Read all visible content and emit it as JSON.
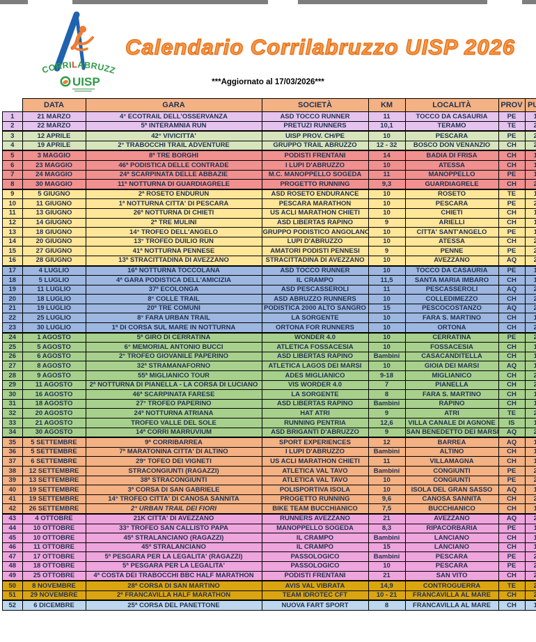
{
  "page": {
    "title": "Calendario Corrilabruzzo UISP 2026",
    "updated_note": "***Aggiornato al 17/03/2026***"
  },
  "colors": {
    "title_orange": "#ED7D31",
    "header_bg": "#F4B183",
    "table_ink": "#1F3050",
    "logo_blue": "#1F63B0",
    "logo_green": "#2E9B47",
    "logo_orange": "#ED7D31"
  },
  "logo": {
    "word1": "CORRI",
    "word2": "L",
    "word3": "ABRUZZO",
    "org": "UISP"
  },
  "table": {
    "headers": [
      "DATA",
      "GARA",
      "SOCIETÀ",
      "KM",
      "LOCALITÀ",
      "PROV",
      "PUNTI"
    ],
    "month_colors": {
      "marzo": "#E5C3EE",
      "aprile": "#D7E4BC",
      "maggio": "#F0908F",
      "giugno": "#FFE699",
      "luglio": "#9DB7E0",
      "agosto": "#A8D08D",
      "settembre": "#F4B183",
      "ottobre": "#EEA5DD",
      "novembre": "#DBA512",
      "dicembre": "#BDD7EE"
    },
    "rows": [
      {
        "n": "1",
        "date": "21 MARZO",
        "race": "4° ECOTRAIL DELL'OSSERVANZA",
        "club": "ASD TOCCO RUNNER",
        "km": "11",
        "loc": "TOCCO DA CASAURIA",
        "prov": "PE",
        "pts": "100",
        "m": "marzo"
      },
      {
        "n": "2",
        "date": "22 MARZO",
        "race": "5ª INTERAMNIA RUN",
        "club": "PRETUZI RUNNERS",
        "km": "10,1",
        "loc": "TERAMO",
        "prov": "TE",
        "pts": "200",
        "m": "marzo",
        "gend": true
      },
      {
        "n": "3",
        "date": "12 APRILE",
        "race": "42° VIVICITTA'",
        "club": "UISP PROV. CH/PE",
        "km": "10",
        "loc": "PESCARA",
        "prov": "PE",
        "pts": "250",
        "m": "aprile"
      },
      {
        "n": "4",
        "date": "19 APRILE",
        "race": "2° TRABOCCHI TRAIL ADVENTURE",
        "club": "GRUPPO TRAIL ABRUZZO",
        "km": "12 - 32",
        "loc": "BOSCO DON VENANZIO",
        "prov": "CH",
        "pts": "200",
        "m": "aprile",
        "gend": true
      },
      {
        "n": "5",
        "date": "3 MAGGIO",
        "race": "8ª TRE BORGHI",
        "club": "PODISTI FRENTANI",
        "km": "14",
        "loc": "BADIA DI FRISA",
        "prov": "CH",
        "pts": "150",
        "m": "maggio"
      },
      {
        "n": "6",
        "date": "23 MAGGIO",
        "race": "46ª PODISTICA DELLE CONTRADE",
        "club": "I LUPI D'ABRUZZO",
        "km": "10",
        "loc": "ATESSA",
        "prov": "CH",
        "pts": "150",
        "m": "maggio"
      },
      {
        "n": "7",
        "date": "24 MAGGIO",
        "race": "24ª SCARPINATA DELLE ABBAZIE",
        "club": "M.C. MANOPPELLO SOGEDA",
        "km": "11",
        "loc": "MANOPPELLO",
        "prov": "PE",
        "pts": "150",
        "m": "maggio"
      },
      {
        "n": "8",
        "date": "30 MAGGIO",
        "race": "11ª NOTTURNA DI GUARDIAGRELE",
        "club": "PROGETTO RUNNING",
        "km": "9,3",
        "loc": "GUARDIAGRELE",
        "prov": "CH",
        "pts": "200",
        "m": "maggio",
        "gend": true
      },
      {
        "n": "9",
        "date": "5 GIUGNO",
        "race": "2ª ROSETO ENDURUN",
        "club": "ASD ROSETO ENDURANCE",
        "km": "10",
        "loc": "ROSETO",
        "prov": "TE",
        "pts": "150",
        "m": "giugno"
      },
      {
        "n": "10",
        "date": "11 GIUGNO",
        "race": "1ª NOTTURNA CITTA' DI PESCARA",
        "club": "PESCARA MARATHON",
        "km": "10",
        "loc": "PESCARA",
        "prov": "PE",
        "pts": "250",
        "m": "giugno"
      },
      {
        "n": "11",
        "date": "13 GIUGNO",
        "race": "26ª NOTTURNA DI CHIETI",
        "club": "US ACLI MARATHON CHIETI",
        "km": "10",
        "loc": "CHIETI",
        "prov": "CH",
        "pts": "100",
        "m": "giugno"
      },
      {
        "n": "12",
        "date": "14 GIUGNO",
        "race": "2ª TRE MULINI",
        "club": "ASD LIBERTAS RAPINO",
        "km": "9",
        "loc": "ARIELLI",
        "prov": "CH",
        "pts": "150",
        "m": "giugno"
      },
      {
        "n": "13",
        "date": "18 GIUGNO",
        "race": "14° TROFEO DELL'ANGELO",
        "club": "GRUPPO PODISTICO ANGOLANO",
        "km": "10",
        "loc": "CITTA' SANT'ANGELO",
        "prov": "PE",
        "pts": "100",
        "m": "giugno"
      },
      {
        "n": "14",
        "date": "20 GIUGNO",
        "race": "13° TROFEO DUILIO RUN",
        "club": "LUPI D'ABRUZZO",
        "km": "10",
        "loc": "ATESSA",
        "prov": "CH",
        "pts": "200",
        "m": "giugno"
      },
      {
        "n": "15",
        "date": "27 GIUGNO",
        "race": "41ª NOTTURNA PENNESE",
        "club": "AMATORI PODISTI PENNESI",
        "km": "9",
        "loc": "PENNE",
        "prov": "PE",
        "pts": "200",
        "m": "giugno"
      },
      {
        "n": "16",
        "date": "28 GIUGNO",
        "race": "13ª STRACITTADINA DI AVEZZANO",
        "club": "STRACITTADINA DI AVEZZANO",
        "km": "10",
        "loc": "AVEZZANO",
        "prov": "AQ",
        "pts": "250",
        "m": "giugno",
        "gend": true
      },
      {
        "n": "17",
        "date": "4 LUGLIO",
        "race": "16ª NOTTURNA TOCCOLANA",
        "club": "ASD TOCCO RUNNER",
        "km": "10",
        "loc": "TOCCO DA CASAURIA",
        "prov": "PE",
        "pts": "150",
        "m": "luglio"
      },
      {
        "n": "18",
        "date": "5 LUGLIO",
        "race": "4ª GARA PODISTICA DELL'AMICIZIA",
        "club": "IL CRAMPO",
        "km": "11,5",
        "loc": "SANTA MARIA IMBARO",
        "prov": "CH",
        "pts": "100",
        "m": "luglio"
      },
      {
        "n": "19",
        "date": "11 LUGLIO",
        "race": "37ª ECOLONGA",
        "club": "ASD PESCASSEROLI",
        "km": "11",
        "loc": "PESCASSEROLI",
        "prov": "AQ",
        "pts": "200",
        "m": "luglio"
      },
      {
        "n": "20",
        "date": "18 LUGLIO",
        "race": "8° COLLE TRAIL",
        "club": "ASD ABRUZZO RUNNERS",
        "km": "10",
        "loc": "COLLEDIMEZZO",
        "prov": "CH",
        "pts": "200",
        "m": "luglio"
      },
      {
        "n": "21",
        "date": "19 LUGLIO",
        "race": "20ª TRE COMUNI",
        "club": "PODISTICA 2000 ALTO SANGRO",
        "km": "15",
        "loc": "PESCOCOSTANZO",
        "prov": "AQ",
        "pts": "200",
        "m": "luglio"
      },
      {
        "n": "22",
        "date": "25 LUGLIO",
        "race": "8° FARA URBAN TRAIL",
        "club": "LA SORGENTE",
        "km": "10",
        "loc": "FARA S. MARTINO",
        "prov": "CH",
        "pts": "100",
        "m": "luglio"
      },
      {
        "n": "23",
        "date": "30 LUGLIO",
        "race": "1ª DI CORSA SUL MARE IN NOTTURNA",
        "club": "ORTONA FOR RUNNERS",
        "km": "10",
        "loc": "ORTONA",
        "prov": "CH",
        "pts": "200",
        "m": "luglio",
        "gend": true
      },
      {
        "n": "24",
        "date": "1 AGOSTO",
        "race": "5ª GIRO DI CERRATINA",
        "club": "WONDER 4.0",
        "km": "10",
        "loc": "CERRATINA",
        "prov": "PE",
        "pts": "250",
        "m": "agosto"
      },
      {
        "n": "25",
        "date": "5 AGOSTO",
        "race": "6° MEMORIAL ANTONIO BUCCI",
        "club": "ATLETICA FOSSACESIA",
        "km": "10",
        "loc": "FOSSACESIA",
        "prov": "CH",
        "pts": "150",
        "m": "agosto"
      },
      {
        "n": "26",
        "date": "6 AGOSTO",
        "race": "2° TROFEO GIOVANILE PAPERINO",
        "club": "ASD LIBERTAS RAPINO",
        "km": "Bambini",
        "loc": "CASACANDITELLA",
        "prov": "CH",
        "pts": "150",
        "m": "agosto"
      },
      {
        "n": "27",
        "date": "8 AGOSTO",
        "race": "32ª STRAMANAFORNO",
        "club": "ATLETICA LAGOS DEI MARSI",
        "km": "10",
        "loc": "GIOIA DEI MARSI",
        "prov": "AQ",
        "pts": "100",
        "m": "agosto"
      },
      {
        "n": "28",
        "date": "9 AGOSTO",
        "race": "55ª MIGLIANICO TOUR",
        "club": "ADES MIGLIANICO",
        "km": "9-18",
        "loc": "MIGLIANICO",
        "prov": "CH",
        "pts": "200",
        "m": "agosto"
      },
      {
        "n": "29",
        "date": "11 AGOSTO",
        "race": "2ª NOTTURNA DI PIANELLA - LA CORSA DI LUCIANO",
        "club": "VIS WORDER 4.0",
        "km": "7",
        "loc": "PIANELLA",
        "prov": "CH",
        "pts": "200",
        "m": "agosto"
      },
      {
        "n": "30",
        "date": "16 AGOSTO",
        "race": "46ª SCARPINATA FARESE",
        "club": "LA SORGENTE",
        "km": "8",
        "loc": "FARA S. MARTINO",
        "prov": "CH",
        "pts": "100",
        "m": "agosto"
      },
      {
        "n": "31",
        "date": "18 AGOSTO",
        "race": "27° TROFEO PAPERINO",
        "club": "ASD LIBERTAS RAPINO",
        "km": "Bambini",
        "loc": "RAPINO",
        "prov": "CH",
        "pts": "150",
        "m": "agosto"
      },
      {
        "n": "32",
        "date": "20 AGOSTO",
        "race": "24ª NOTTURNA ATRIANA",
        "club": "HAT ATRI",
        "km": "9",
        "loc": "ATRI",
        "prov": "TE",
        "pts": "200",
        "m": "agosto"
      },
      {
        "n": "33",
        "date": "21 AGOSTO",
        "race": "TROFEO VALLE DEL SOLE",
        "club": "RUNNING PENTRIA",
        "km": "12,6",
        "loc": "VILLA CANALE DI AGNONE",
        "prov": "IS",
        "pts": "150",
        "m": "agosto"
      },
      {
        "n": "34",
        "date": "30 AGOSTO",
        "race": "14ª CORRI MARRUVIUM",
        "club": "ASD BRIGANTI D'ABRUZZO",
        "km": "9",
        "loc": "SAN BENEDETTO DEI MARSI",
        "prov": "AQ",
        "pts": "200",
        "m": "agosto",
        "gend": true
      },
      {
        "n": "35",
        "date": "5 SETTEMBRE",
        "race": "9ª CORRIBARREA",
        "club": "SPORT EXPERIENCES",
        "km": "12",
        "loc": "BARREA",
        "prov": "AQ",
        "pts": "150",
        "m": "settembre"
      },
      {
        "n": "36",
        "date": "5 SETTEMBRE",
        "race": "7ª MARATONINA CITTA' DI ALTINO",
        "club": "I LUPI D'ABRUZZO",
        "km": "Bambini",
        "loc": "ALTINO",
        "prov": "CH",
        "pts": "100",
        "m": "settembre"
      },
      {
        "n": "37",
        "date": "6 SETTEMBRE",
        "race": "29° TOFEO DEI VIGNETI",
        "club": "US ACLI MARATHON CHIETI",
        "km": "11",
        "loc": "VILLAMAGNA",
        "prov": "CH",
        "pts": "100",
        "m": "settembre"
      },
      {
        "n": "38",
        "date": "12 SETTEMBRE",
        "race": "STRACONGIUNTI (RAGAZZI)",
        "club": "ATLETICA VAL TAVO",
        "km": "Bambini",
        "loc": "CONGIUNTI",
        "prov": "PE",
        "pts": "250",
        "m": "settembre"
      },
      {
        "n": "39",
        "date": "13 SETTEMBRE",
        "race": "38ª STRACONGIUNTI",
        "club": "ATLETICA VAL TAVO",
        "km": "10",
        "loc": "CONGIUNTI",
        "prov": "PE",
        "pts": "250",
        "m": "settembre"
      },
      {
        "n": "40",
        "date": "19 SETTEMBRE",
        "race": "3ª CORSA DI SAN GABRIELE",
        "club": "POLISPORTIVA ISOLA",
        "km": "10",
        "loc": "ISOLA DEL GRAN SASSO",
        "prov": "AQ",
        "pts": "150",
        "m": "settembre"
      },
      {
        "n": "41",
        "date": "19 SETTEMBRE",
        "race": "14° TROFEO CITTA' DI CANOSA SANNITA",
        "club": "PROGETTO RUNNING",
        "km": "9,6",
        "loc": "CANOSA SANNITA",
        "prov": "CH",
        "pts": "200",
        "m": "settembre"
      },
      {
        "n": "42",
        "date": "26 SETTEMBRE",
        "race": "2° URBAN TRAIL DEI FIORI",
        "club": "BIKE TEAM BUCCHIANICO",
        "km": "7,5",
        "loc": "BUCCHIANICO",
        "prov": "CH",
        "pts": "100",
        "m": "settembre",
        "i": true,
        "gend": true
      },
      {
        "n": "43",
        "date": "4 OTTOBRE",
        "race": "21K CITTA' DI AVEZZANO",
        "club": "RUNNERS AVEZZANO",
        "km": "21",
        "loc": "AVEZZANO",
        "prov": "AQ",
        "pts": "200",
        "m": "ottobre"
      },
      {
        "n": "44",
        "date": "10 OTTOBRE",
        "race": "33° TROFEO SAN CALLISTO PAPA",
        "club": "MANOPPELLO SOGEDA",
        "km": "8,3",
        "loc": "RIPACORBARIA",
        "prov": "PE",
        "pts": "150",
        "m": "ottobre"
      },
      {
        "n": "45",
        "date": "10 OTTOBRE",
        "race": "45ª STRALANCIANO (RAGAZZI)",
        "club": "IL CRAMPO",
        "km": "Bambini",
        "loc": "LANCIANO",
        "prov": "CH",
        "pts": "100",
        "m": "ottobre"
      },
      {
        "n": "46",
        "date": "11 OTTOBRE",
        "race": "45ª STRALANCIANO",
        "club": "IL CRAMPO",
        "km": "15",
        "loc": "LANCIANO",
        "prov": "CH",
        "pts": "100",
        "m": "ottobre"
      },
      {
        "n": "47",
        "date": "17 OTTOBRE",
        "race": "5ª PESGARA PER LA LEGALITA' (RAGAZZI)",
        "club": "PASSOLOGICO",
        "km": "Bambini",
        "loc": "PESCARA",
        "prov": "PE",
        "pts": "200",
        "m": "ottobre"
      },
      {
        "n": "48",
        "date": "18 OTTOBRE",
        "race": "5ª PESGARA PER LA LEGALITA'",
        "club": "PASSOLOGICO",
        "km": "10",
        "loc": "PESCARA",
        "prov": "PE",
        "pts": "200",
        "m": "ottobre"
      },
      {
        "n": "49",
        "date": "25 OTTOBRE",
        "race": "4ª COSTA DEI TRABOCCHI BBC HALF MARATHON",
        "club": "PODISTI FRENTANI",
        "km": "21",
        "loc": "SAN VITO",
        "prov": "CH",
        "pts": "200",
        "m": "ottobre",
        "gend": true
      },
      {
        "n": "50",
        "date": "8 NOVEMBRE",
        "race": "28ª CORSA DI SAN MARTINO",
        "club": "AVIS VAL VIBRATA",
        "km": "14,9",
        "loc": "CONTROGUERRA",
        "prov": "TE",
        "pts": "200",
        "m": "novembre"
      },
      {
        "n": "51",
        "date": "29 NOVEMBRE",
        "race": "2ª FRANCAVILLA HALF MARATHON",
        "club": "TEAM IDROTEC CFT",
        "km": "10 - 21",
        "loc": "FRANCAVILLA AL MARE",
        "prov": "CH",
        "pts": "200",
        "m": "novembre",
        "gend": true
      },
      {
        "n": "52",
        "date": "6 DICEMBRE",
        "race": "25ª CORSA DEL PANETTONE",
        "club": "NUOVA FART SPORT",
        "km": "8",
        "loc": "FRANCAVILLA AL MARE",
        "prov": "CH",
        "pts": "150",
        "m": "dicembre"
      }
    ]
  }
}
